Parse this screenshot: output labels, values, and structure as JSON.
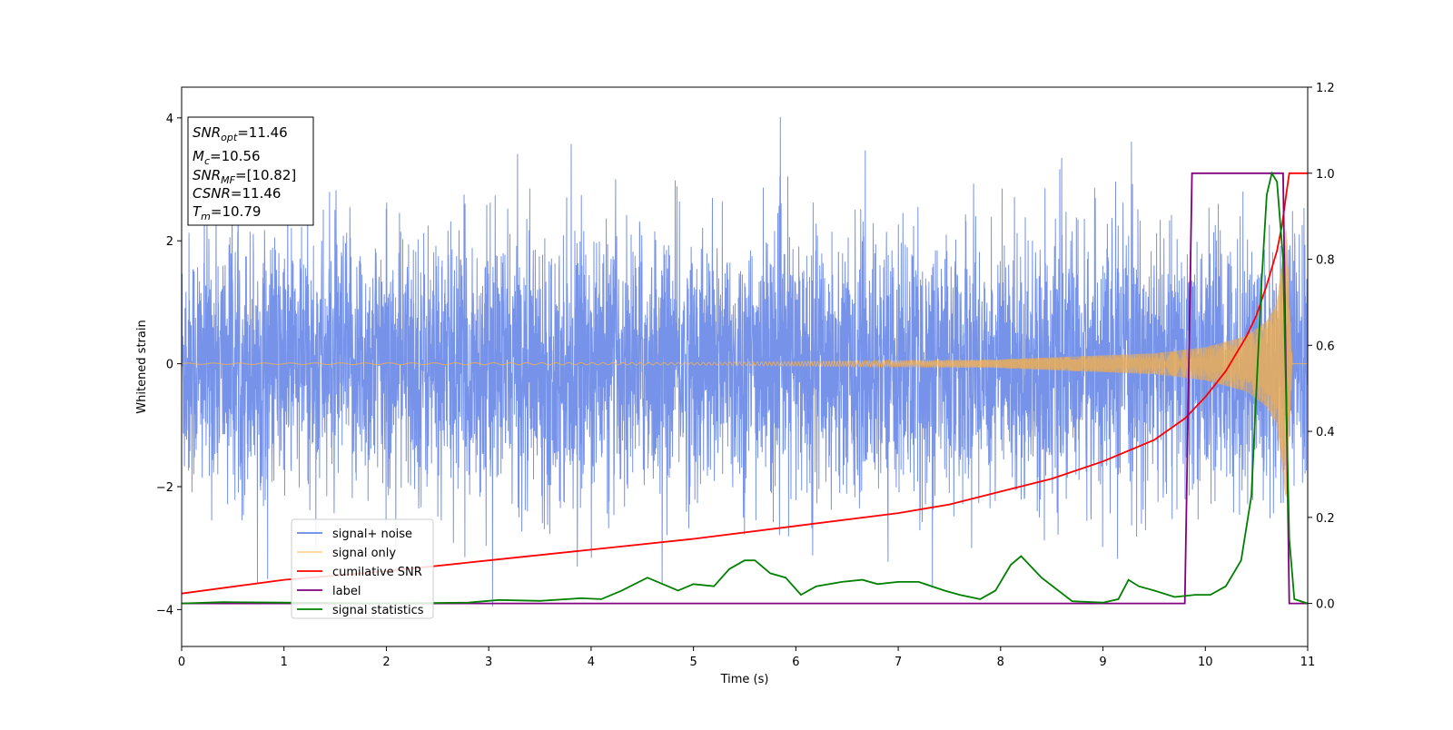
{
  "chart_data": {
    "type": "line",
    "xlabel": "Time (s)",
    "ylabel": "Whitened strain",
    "xlim": [
      0,
      11
    ],
    "ylim_left": [
      -4.6,
      4.5
    ],
    "ylim_right": [
      -0.1,
      1.2
    ],
    "x_ticks": [
      "0",
      "1",
      "2",
      "3",
      "4",
      "5",
      "6",
      "7",
      "8",
      "9",
      "10",
      "11"
    ],
    "y_ticks_left": [
      "4",
      "2",
      "0",
      "−2",
      "−4"
    ],
    "y_ticks_right": [
      "1.2",
      "1.0",
      "0.8",
      "0.6",
      "0.4",
      "0.2",
      "0.0"
    ],
    "stats_box": {
      "snr_opt": {
        "main": "SNR",
        "sub": "opt",
        "value": "=11.46"
      },
      "mc": {
        "main": "M",
        "sub": "c",
        "value": "=10.56"
      },
      "snr_mf": {
        "main": "SNR",
        "sub": "MF",
        "value": "=[10.82]"
      },
      "csnr": {
        "main": "CSNR",
        "value": "=11.46"
      },
      "tm": {
        "main": "T",
        "sub": "m",
        "value": "=10.79"
      }
    },
    "legend": {
      "placement": "lower-left",
      "items": [
        {
          "label": "signal+ noise",
          "color": "#4169e1"
        },
        {
          "label": "signal only",
          "color": "#ffb347"
        },
        {
          "label": "cumilative SNR",
          "color": "#ff0000"
        },
        {
          "label": "label",
          "color": "#800080"
        },
        {
          "label": "signal statistics",
          "color": "#008000"
        }
      ]
    },
    "series": [
      {
        "name": "signal+ noise",
        "axis": "left",
        "color": "#4169e1",
        "description_values": {
          "std": 1.0,
          "min": -4.15,
          "max": 4.1,
          "t_range": [
            0,
            11
          ]
        }
      },
      {
        "name": "signal only",
        "axis": "left",
        "color": "#ffb347",
        "envelope": {
          "t": [
            0,
            5,
            8,
            9.5,
            10,
            10.4,
            10.6,
            10.7,
            10.75,
            10.79,
            10.85,
            11
          ],
          "amp": [
            0.01,
            0.02,
            0.07,
            0.17,
            0.27,
            0.45,
            0.7,
            1.0,
            1.7,
            2.3,
            0.0,
            0.0
          ]
        }
      },
      {
        "name": "cumilative SNR",
        "axis": "right",
        "color": "#ff0000",
        "x": [
          0,
          1,
          2,
          3,
          4,
          5,
          6,
          7,
          7.5,
          8,
          8.5,
          9,
          9.5,
          9.8,
          10,
          10.2,
          10.4,
          10.5,
          10.6,
          10.7,
          10.75,
          10.79,
          10.82,
          11
        ],
        "y": [
          0.023,
          0.055,
          0.075,
          0.1,
          0.125,
          0.15,
          0.18,
          0.21,
          0.23,
          0.26,
          0.29,
          0.33,
          0.38,
          0.43,
          0.48,
          0.54,
          0.62,
          0.67,
          0.74,
          0.82,
          0.88,
          0.95,
          1.0,
          1.0
        ]
      },
      {
        "name": "label",
        "axis": "right",
        "color": "#800080",
        "x": [
          0,
          9.8,
          9.87,
          10.76,
          10.82,
          11
        ],
        "y": [
          0,
          0,
          1,
          1,
          0,
          0
        ]
      },
      {
        "name": "signal statistics",
        "axis": "right",
        "color": "#008000",
        "x": [
          0,
          0.4,
          1,
          2,
          2.8,
          3.1,
          3.5,
          3.9,
          4.1,
          4.3,
          4.55,
          4.7,
          4.85,
          5.0,
          5.2,
          5.35,
          5.5,
          5.6,
          5.75,
          5.9,
          6.05,
          6.2,
          6.45,
          6.65,
          6.8,
          7.0,
          7.2,
          7.45,
          7.6,
          7.8,
          7.95,
          8.1,
          8.2,
          8.4,
          8.7,
          9.0,
          9.15,
          9.25,
          9.35,
          9.5,
          9.7,
          9.9,
          10.05,
          10.2,
          10.35,
          10.45,
          10.5,
          10.55,
          10.6,
          10.65,
          10.7,
          10.76,
          10.82,
          10.87,
          11
        ],
        "y": [
          0.0,
          0.003,
          0.002,
          0.0,
          0.002,
          0.008,
          0.006,
          0.012,
          0.01,
          0.03,
          0.06,
          0.045,
          0.03,
          0.045,
          0.04,
          0.08,
          0.1,
          0.1,
          0.07,
          0.06,
          0.02,
          0.04,
          0.05,
          0.055,
          0.045,
          0.05,
          0.05,
          0.03,
          0.02,
          0.01,
          0.03,
          0.09,
          0.11,
          0.06,
          0.005,
          0.002,
          0.01,
          0.055,
          0.04,
          0.03,
          0.015,
          0.02,
          0.02,
          0.04,
          0.1,
          0.25,
          0.5,
          0.75,
          0.95,
          1.0,
          0.98,
          0.8,
          0.15,
          0.01,
          0.0
        ]
      }
    ]
  }
}
